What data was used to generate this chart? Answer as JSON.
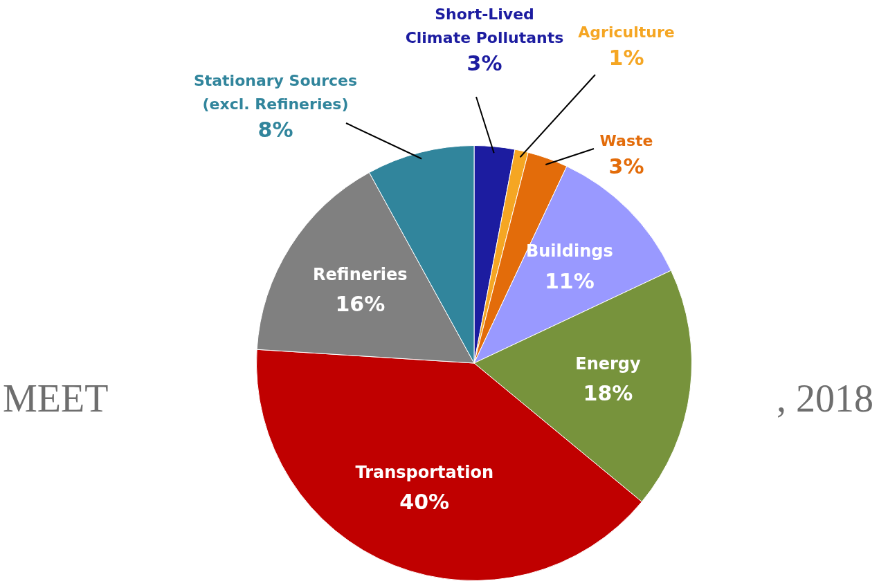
{
  "chart_data": {
    "type": "pie",
    "categories": [
      "Short-Lived Climate Pollutants",
      "Agriculture",
      "Waste",
      "Buildings",
      "Energy",
      "Transportation",
      "Refineries",
      "Stationary Sources (excl. Refineries)"
    ],
    "values": [
      3,
      1,
      3,
      11,
      18,
      40,
      16,
      8
    ],
    "value_labels": [
      "3%",
      "1%",
      "3%",
      "11%",
      "18%",
      "40%",
      "16%",
      "8%"
    ],
    "colors": [
      "#1c1ca0",
      "#f5a623",
      "#e36c0a",
      "#9999ff",
      "#77933c",
      "#c00000",
      "#808080",
      "#31859c"
    ],
    "annotations": [
      "MEET",
      ", 2018"
    ],
    "legend": false
  }
}
